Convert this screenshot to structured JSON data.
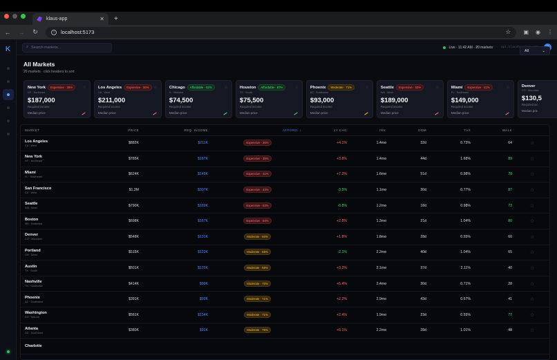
{
  "browser": {
    "tab_title": "klaus-app",
    "url": "localhost:5173",
    "traffic_colors": [
      "#ee5f57",
      "#5b5b5b",
      "#34c749"
    ]
  },
  "app": {
    "logo": "K",
    "search_placeholder": "Search markets...",
    "status": "Live · 11:42 AM · 20 markets",
    "api_host": "api.klaushousing.com",
    "avatar": "K",
    "page_title": "All Markets",
    "page_subtitle": "20 markets · click headers to sort",
    "filter_value": "All",
    "sidebar_items": [
      "home",
      "markets",
      "compare",
      "saved",
      "reports",
      "settings"
    ],
    "active_sidebar": 2
  },
  "cards": [
    {
      "name": "New York",
      "region": "NY · Northeast",
      "badge": "Expensive · 39%",
      "tier": "exp",
      "income": "$187,000",
      "income_label": "Required income",
      "median_label": "Median price"
    },
    {
      "name": "Los Angeles",
      "region": "CA · West",
      "badge": "Expensive · 36%",
      "tier": "exp",
      "income": "$211,000",
      "income_label": "Required income",
      "median_label": "Median price"
    },
    {
      "name": "Chicago",
      "region": "IL · Midwest",
      "badge": "Affordable · 92%",
      "tier": "aff",
      "income": "$74,500",
      "income_label": "Required income",
      "median_label": "Median price"
    },
    {
      "name": "Houston",
      "region": "TX · South",
      "badge": "Affordable · 87%",
      "tier": "aff",
      "income": "$75,500",
      "income_label": "Required income",
      "median_label": "Median price"
    },
    {
      "name": "Phoenix",
      "region": "AZ · Southwest",
      "badge": "Moderate · 71%",
      "tier": "mod",
      "income": "$93,000",
      "income_label": "Required income",
      "median_label": "Median price"
    },
    {
      "name": "Seattle",
      "region": "WA · West",
      "badge": "Expensive · 53%",
      "tier": "exp",
      "income": "$189,000",
      "income_label": "Required income",
      "median_label": "Median price"
    },
    {
      "name": "Miami",
      "region": "FL · Southeast",
      "badge": "Expensive · 41%",
      "tier": "exp",
      "income": "$149,000",
      "income_label": "Required income",
      "median_label": "Median price"
    },
    {
      "name": "Denver",
      "region": "CO · Mountain",
      "badge": "",
      "tier": "mod",
      "income": "$130,5",
      "income_label": "Required inc",
      "median_label": "Median pric"
    }
  ],
  "table": {
    "headers": [
      "MARKET",
      "PRICE",
      "REQ. INCOME",
      "AFFORD. ↓",
      "1Y CHG",
      "INV.",
      "DOM",
      "TAX",
      "WALK"
    ],
    "rows": [
      {
        "name": "Los Angeles",
        "region": "CA · West",
        "price": "$882K",
        "income": "$211K",
        "afford": "Expensive · 36%",
        "tier": "exp",
        "chg": "+4.1%",
        "chg_dir": "neg",
        "inv": "1.4mo",
        "dom": "32d",
        "tax": "0.73%",
        "walk": "64",
        "walk_good": false
      },
      {
        "name": "New York",
        "region": "NY · Northeast",
        "price": "$785K",
        "income": "$187K",
        "afford": "Expensive · 39%",
        "tier": "exp",
        "chg": "+3.8%",
        "chg_dir": "neg",
        "inv": "1.4mo",
        "dom": "44d",
        "tax": "1.68%",
        "walk": "89",
        "walk_good": true
      },
      {
        "name": "Miami",
        "region": "FL · Southeast",
        "price": "$624K",
        "income": "$149K",
        "afford": "Expensive · 41%",
        "tier": "exp",
        "chg": "+7.2%",
        "chg_dir": "neg",
        "inv": "1.6mo",
        "dom": "51d",
        "tax": "0.98%",
        "walk": "78",
        "walk_good": true
      },
      {
        "name": "San Francisco",
        "region": "CA · West",
        "price": "$1.3M",
        "income": "$307K",
        "afford": "Expensive · 43%",
        "tier": "exp",
        "chg": "-3.5%",
        "chg_dir": "pos",
        "inv": "1.1mo",
        "dom": "30d",
        "tax": "0.77%",
        "walk": "87",
        "walk_good": true
      },
      {
        "name": "Seattle",
        "region": "WA · West",
        "price": "$790K",
        "income": "$189K",
        "afford": "Expensive · 53%",
        "tier": "exp",
        "chg": "-0.8%",
        "chg_dir": "pos",
        "inv": "1.2mo",
        "dom": "18d",
        "tax": "0.98%",
        "walk": "73",
        "walk_good": true
      },
      {
        "name": "Boston",
        "region": "MA · Northeast",
        "price": "$698K",
        "income": "$167K",
        "afford": "Expensive · 54%",
        "tier": "exp",
        "chg": "+2.8%",
        "chg_dir": "neg",
        "inv": "1.3mo",
        "dom": "21d",
        "tax": "1.04%",
        "walk": "80",
        "walk_good": true
      },
      {
        "name": "Denver",
        "region": "CO · Mountain",
        "price": "$548K",
        "income": "$131K",
        "afford": "Moderate · 60%",
        "tier": "mod",
        "chg": "+1.8%",
        "chg_dir": "neg",
        "inv": "1.8mo",
        "dom": "28d",
        "tax": "0.55%",
        "walk": "60",
        "walk_good": false
      },
      {
        "name": "Portland",
        "region": "OR · West",
        "price": "$515K",
        "income": "$123K",
        "afford": "Moderate · 65%",
        "tier": "mod",
        "chg": "-2.1%",
        "chg_dir": "pos",
        "inv": "2.2mo",
        "dom": "40d",
        "tax": "1.04%",
        "walk": "65",
        "walk_good": false
      },
      {
        "name": "Austin",
        "region": "TX · South",
        "price": "$501K",
        "income": "$120K",
        "afford": "Moderate · 69%",
        "tier": "mod",
        "chg": "+3.2%",
        "chg_dir": "neg",
        "inv": "2.1mo",
        "dom": "37d",
        "tax": "2.11%",
        "walk": "40",
        "walk_good": false
      },
      {
        "name": "Nashville",
        "region": "TN · Southeast",
        "price": "$414K",
        "income": "$99K",
        "afford": "Moderate · 70%",
        "tier": "mod",
        "chg": "+5.4%",
        "chg_dir": "neg",
        "inv": "2.4mo",
        "dom": "30d",
        "tax": "0.71%",
        "walk": "28",
        "walk_good": false
      },
      {
        "name": "Phoenix",
        "region": "AZ · Southwest",
        "price": "$391K",
        "income": "$93K",
        "afford": "Moderate · 71%",
        "tier": "mod",
        "chg": "+2.2%",
        "chg_dir": "neg",
        "inv": "2.9mo",
        "dom": "43d",
        "tax": "0.67%",
        "walk": "41",
        "walk_good": false
      },
      {
        "name": "Washington",
        "region": "DC · Mid-Atl",
        "price": "$561K",
        "income": "$134K",
        "afford": "Moderate · 71%",
        "tier": "mod",
        "chg": "+2.4%",
        "chg_dir": "neg",
        "inv": "1.9mo",
        "dom": "23d",
        "tax": "0.55%",
        "walk": "77",
        "walk_good": true
      },
      {
        "name": "Atlanta",
        "region": "GA · Southeast",
        "price": "$380K",
        "income": "$91K",
        "afford": "Moderate · 76%",
        "tier": "mod",
        "chg": "+6.1%",
        "chg_dir": "neg",
        "inv": "2.2mo",
        "dom": "28d",
        "tax": "1.01%",
        "walk": "48",
        "walk_good": false
      },
      {
        "name": "Charlotte",
        "region": "",
        "price": "",
        "income": "",
        "afford": "",
        "tier": "mod",
        "chg": "",
        "chg_dir": "neg",
        "inv": "",
        "dom": "",
        "tax": "",
        "walk": "",
        "walk_good": false
      }
    ]
  }
}
